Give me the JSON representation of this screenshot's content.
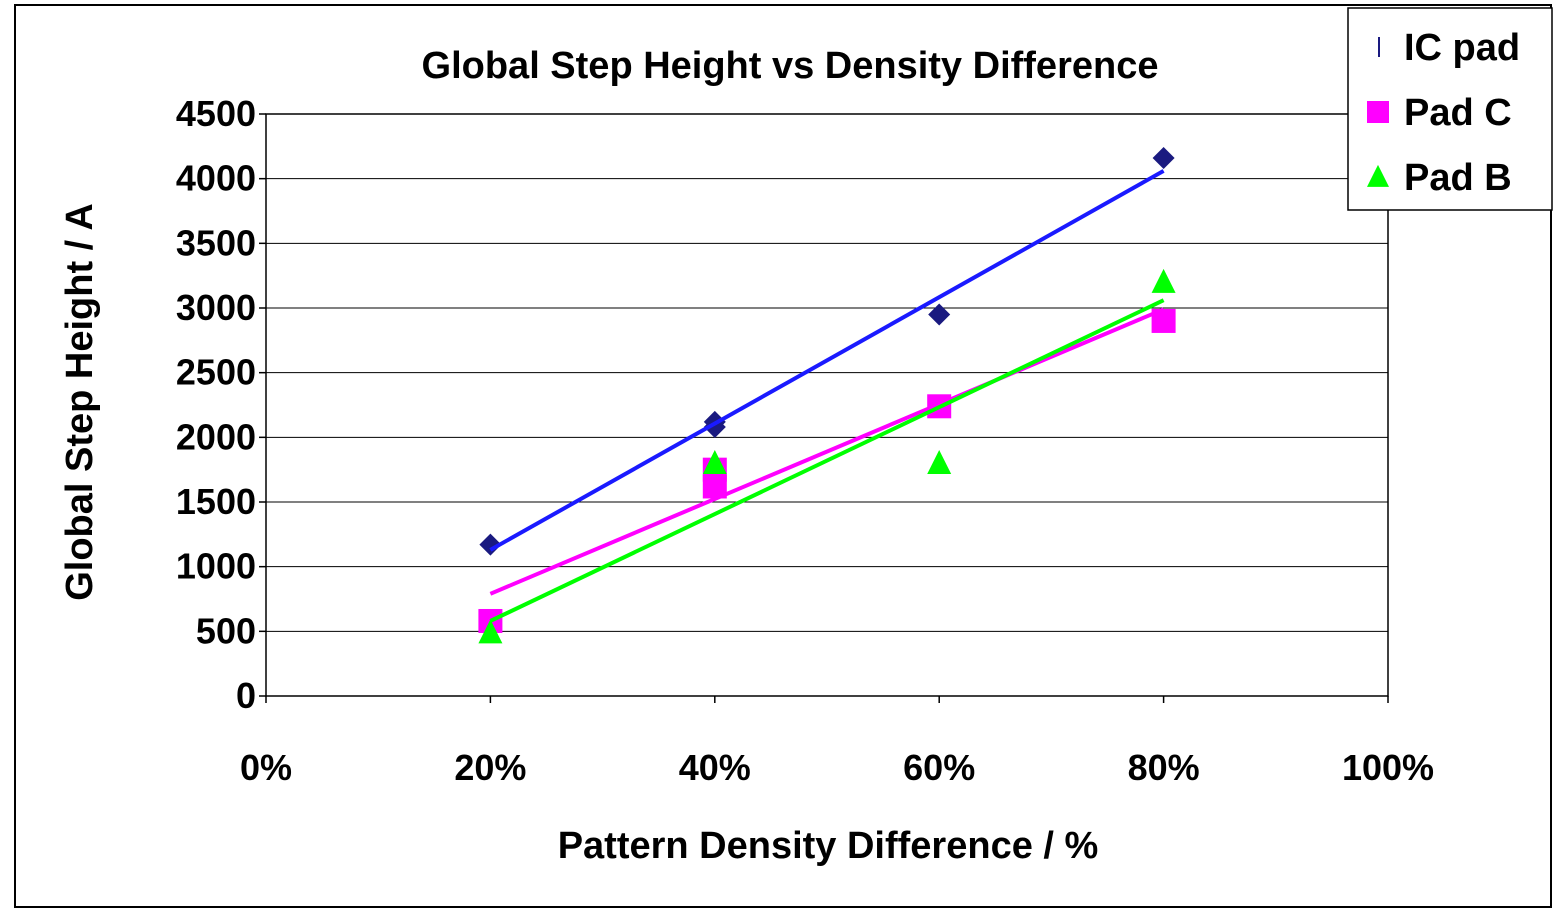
{
  "chart_data": {
    "type": "scatter",
    "title": "Global Step Height vs Density Difference",
    "xlabel": "Pattern Density Difference / %",
    "ylabel": "Global Step Height / A",
    "xlim": [
      0,
      1
    ],
    "ylim": [
      0,
      4500
    ],
    "x_ticks": [
      "0%",
      "20%",
      "40%",
      "60%",
      "80%",
      "100%"
    ],
    "y_ticks": [
      "0",
      "500",
      "1000",
      "1500",
      "2000",
      "2500",
      "3000",
      "3500",
      "4000",
      "4500"
    ],
    "grid": "horizontal",
    "legend_position": "top-right",
    "series": [
      {
        "name": "IC pad",
        "marker": "diamond",
        "color": "#1a1a80",
        "trend_color": "#1a1aff",
        "points": [
          [
            0.2,
            1170
          ],
          [
            0.4,
            2080
          ],
          [
            0.4,
            2120
          ],
          [
            0.6,
            2950
          ],
          [
            0.8,
            4160
          ]
        ],
        "trendline": [
          [
            0.2,
            1130
          ],
          [
            0.8,
            4060
          ]
        ]
      },
      {
        "name": "Pad C",
        "marker": "square",
        "color": "#ff00ff",
        "trend_color": "#ff00ff",
        "points": [
          [
            0.2,
            580
          ],
          [
            0.4,
            1620
          ],
          [
            0.4,
            1750
          ],
          [
            0.6,
            2240
          ],
          [
            0.8,
            2900
          ]
        ],
        "trendline": [
          [
            0.2,
            790
          ],
          [
            0.8,
            2990
          ]
        ]
      },
      {
        "name": "Pad B",
        "marker": "triangle",
        "color": "#00ff00",
        "trend_color": "#00ff00",
        "points": [
          [
            0.2,
            490
          ],
          [
            0.4,
            1800
          ],
          [
            0.6,
            1800
          ],
          [
            0.8,
            3200
          ]
        ],
        "trendline": [
          [
            0.2,
            580
          ],
          [
            0.8,
            3060
          ]
        ]
      }
    ]
  }
}
